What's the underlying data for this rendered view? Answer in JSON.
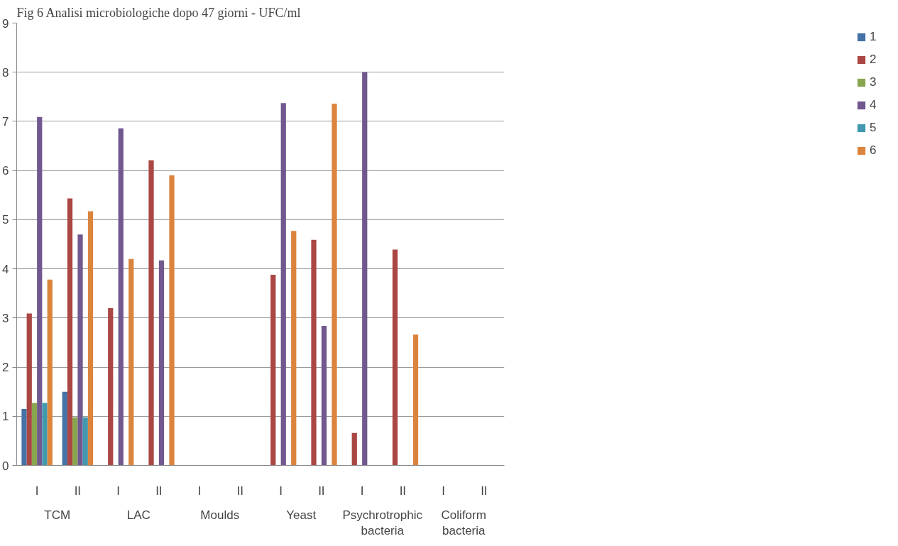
{
  "chart_data": {
    "type": "bar",
    "title": "Fig 6 Analisi microbiologiche dopo 47 giorni - UFC/ml",
    "categories": [
      "I",
      "II",
      "I",
      "II",
      "I",
      "II",
      "I",
      "II",
      "I",
      "II",
      "I",
      "II"
    ],
    "annotations": [
      "TCM",
      "LAC",
      "Moulds",
      "Yeast",
      "Psychrotrophic\nbacteria",
      "Coliform\nbacteria"
    ],
    "series": [
      {
        "name": "1",
        "color": "#4572a7",
        "values": [
          1.15,
          1.5,
          null,
          null,
          null,
          null,
          null,
          null,
          null,
          null,
          null,
          null
        ]
      },
      {
        "name": "2",
        "color": "#aa4643",
        "values": [
          3.09,
          5.43,
          3.2,
          6.21,
          null,
          null,
          3.88,
          4.59,
          0.66,
          4.39,
          null,
          null
        ]
      },
      {
        "name": "3",
        "color": "#89a54e",
        "values": [
          1.27,
          0.98,
          null,
          null,
          null,
          null,
          null,
          null,
          null,
          null,
          null,
          null
        ]
      },
      {
        "name": "4",
        "color": "#71588f",
        "values": [
          7.09,
          4.7,
          6.86,
          4.17,
          null,
          null,
          7.37,
          2.84,
          8.0,
          null,
          null,
          null
        ]
      },
      {
        "name": "5",
        "color": "#4198af",
        "values": [
          1.27,
          0.98,
          null,
          null,
          null,
          null,
          null,
          null,
          null,
          null,
          null,
          null
        ]
      },
      {
        "name": "6",
        "color": "#db843d",
        "values": [
          3.78,
          5.17,
          4.2,
          5.9,
          null,
          null,
          4.77,
          7.36,
          null,
          2.66,
          null,
          null
        ]
      }
    ],
    "ylim": [
      0,
      9
    ],
    "yticks": [
      0,
      1,
      2,
      3,
      4,
      5,
      6,
      7,
      8,
      9
    ],
    "grid": "y",
    "legend": "right"
  }
}
